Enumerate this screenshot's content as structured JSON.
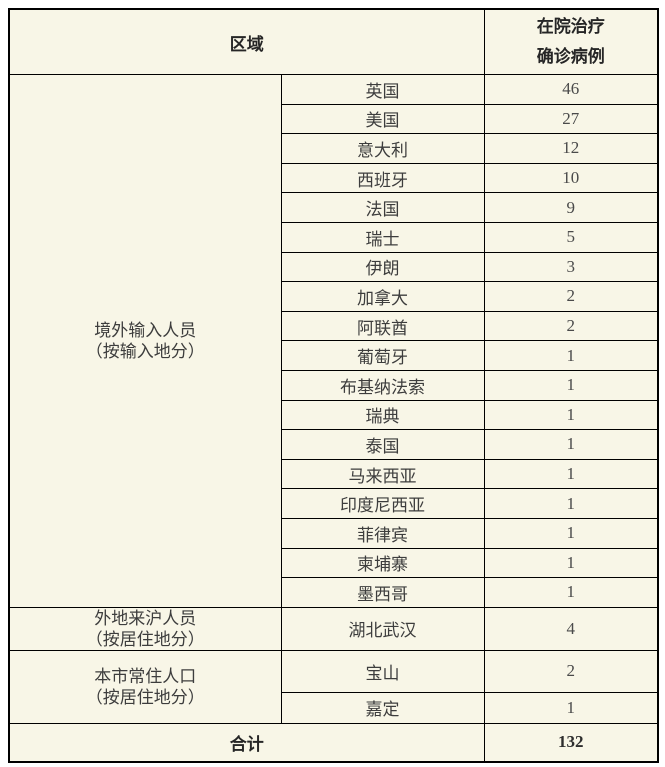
{
  "colors": {
    "page_background": "#ffffff",
    "table_background": "#f8f6e7",
    "border": "#000000",
    "text": "#3d3d3d"
  },
  "table": {
    "header": {
      "region_label": "区域",
      "cases_label_line1": "在院治疗",
      "cases_label_line2": "确诊病例"
    },
    "groups": [
      {
        "label_line1": "境外输入人员",
        "label_line2": "（按输入地分）",
        "rows": [
          {
            "place": "英国",
            "cases": "46"
          },
          {
            "place": "美国",
            "cases": "27"
          },
          {
            "place": "意大利",
            "cases": "12"
          },
          {
            "place": "西班牙",
            "cases": "10"
          },
          {
            "place": "法国",
            "cases": "9"
          },
          {
            "place": "瑞士",
            "cases": "5"
          },
          {
            "place": "伊朗",
            "cases": "3"
          },
          {
            "place": "加拿大",
            "cases": "2"
          },
          {
            "place": "阿联酋",
            "cases": "2"
          },
          {
            "place": "葡萄牙",
            "cases": "1"
          },
          {
            "place": "布基纳法索",
            "cases": "1"
          },
          {
            "place": "瑞典",
            "cases": "1"
          },
          {
            "place": "泰国",
            "cases": "1"
          },
          {
            "place": "马来西亚",
            "cases": "1"
          },
          {
            "place": "印度尼西亚",
            "cases": "1"
          },
          {
            "place": "菲律宾",
            "cases": "1"
          },
          {
            "place": "柬埔寨",
            "cases": "1"
          },
          {
            "place": "墨西哥",
            "cases": "1"
          }
        ]
      },
      {
        "label_line1": "外地来沪人员",
        "label_line2": "（按居住地分）",
        "rows": [
          {
            "place": "湖北武汉",
            "cases": "4"
          }
        ]
      },
      {
        "label_line1": "本市常住人口",
        "label_line2": "（按居住地分）",
        "rows": [
          {
            "place": "宝山",
            "cases": "2"
          },
          {
            "place": "嘉定",
            "cases": "1"
          }
        ]
      }
    ],
    "footer": {
      "label": "合计",
      "total": "132"
    }
  }
}
